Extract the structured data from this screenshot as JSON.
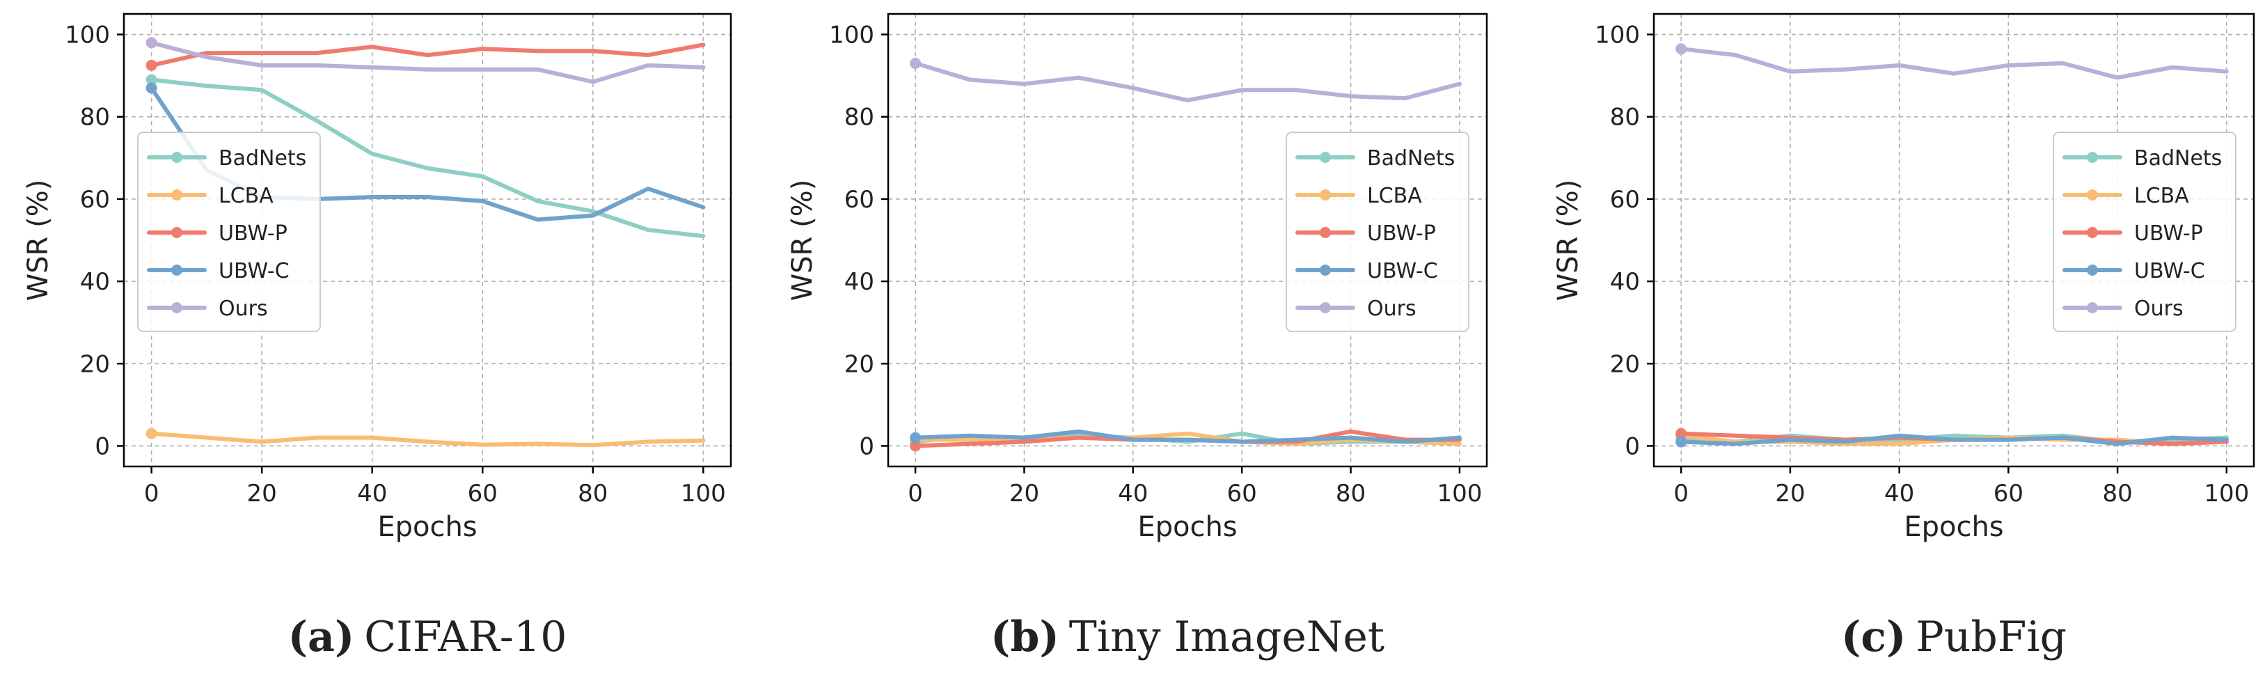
{
  "figure": {
    "panels": [
      {
        "label": "(a)",
        "name": "CIFAR-10"
      },
      {
        "label": "(b)",
        "name": "Tiny ImageNet"
      },
      {
        "label": "(c)",
        "name": "PubFig"
      }
    ]
  },
  "colors": {
    "BadNets": "#8ecfc4",
    "LCBA": "#f8bd72",
    "UBW-P": "#ef7b6e",
    "UBW-C": "#6fa3cd",
    "Ours": "#bbaed8",
    "grid": "#b0b0b0",
    "axis": "#000000"
  },
  "chart_data": [
    {
      "type": "line",
      "title": "",
      "xlabel": "Epochs",
      "ylabel": "WSR (%)",
      "xlim": [
        0,
        100
      ],
      "ylim": [
        0,
        100
      ],
      "xticks": [
        0,
        20,
        40,
        60,
        80,
        100
      ],
      "yticks": [
        0,
        20,
        40,
        60,
        80,
        100
      ],
      "grid": true,
      "legend_position": "center-left",
      "x": [
        0,
        10,
        20,
        30,
        40,
        50,
        60,
        70,
        80,
        90,
        100
      ],
      "series": [
        {
          "name": "BadNets",
          "values": [
            89,
            87.5,
            86.5,
            79,
            71,
            67.5,
            65.5,
            59.5,
            57,
            52.5,
            51
          ]
        },
        {
          "name": "LCBA",
          "values": [
            3,
            2,
            1,
            2,
            2,
            1,
            0.3,
            0.5,
            0.2,
            1,
            1.3
          ]
        },
        {
          "name": "UBW-P",
          "values": [
            92.5,
            95.5,
            95.5,
            95.5,
            97,
            95,
            96.5,
            96,
            96,
            95,
            97.5
          ]
        },
        {
          "name": "UBW-C",
          "values": [
            87,
            67,
            60.5,
            60,
            60.5,
            60.5,
            59.5,
            55,
            56,
            62.5,
            58
          ]
        },
        {
          "name": "Ours",
          "values": [
            98,
            94.5,
            92.5,
            92.5,
            92,
            91.5,
            91.5,
            91.5,
            88.5,
            92.5,
            92
          ]
        }
      ]
    },
    {
      "type": "line",
      "title": "",
      "xlabel": "Epochs",
      "ylabel": "WSR (%)",
      "xlim": [
        0,
        100
      ],
      "ylim": [
        0,
        100
      ],
      "xticks": [
        0,
        20,
        40,
        60,
        80,
        100
      ],
      "yticks": [
        0,
        20,
        40,
        60,
        80,
        100
      ],
      "grid": true,
      "legend_position": "center-right",
      "x": [
        0,
        10,
        20,
        30,
        40,
        50,
        60,
        70,
        80,
        90,
        100
      ],
      "series": [
        {
          "name": "BadNets",
          "values": [
            1,
            2.5,
            1.5,
            2.5,
            2,
            1,
            3,
            0.5,
            1,
            1,
            1.5
          ]
        },
        {
          "name": "LCBA",
          "values": [
            1.5,
            1.5,
            2,
            2,
            2,
            3,
            1,
            0.5,
            1.5,
            1,
            0.5
          ]
        },
        {
          "name": "UBW-P",
          "values": [
            0,
            0.5,
            1,
            2,
            1.5,
            1.5,
            1,
            1,
            3.5,
            1.5,
            1.5
          ]
        },
        {
          "name": "UBW-C",
          "values": [
            2,
            2.5,
            2,
            3.5,
            1.5,
            1.5,
            1,
            1.5,
            2,
            1,
            2
          ]
        },
        {
          "name": "Ours",
          "values": [
            93,
            89,
            88,
            89.5,
            87,
            84,
            86.5,
            86.5,
            85,
            84.5,
            88
          ]
        }
      ]
    },
    {
      "type": "line",
      "title": "",
      "xlabel": "Epochs",
      "ylabel": "WSR (%)",
      "xlim": [
        0,
        100
      ],
      "ylim": [
        0,
        100
      ],
      "xticks": [
        0,
        20,
        40,
        60,
        80,
        100
      ],
      "yticks": [
        0,
        20,
        40,
        60,
        80,
        100
      ],
      "grid": true,
      "legend_position": "center-right",
      "x": [
        0,
        10,
        20,
        30,
        40,
        50,
        60,
        70,
        80,
        90,
        100
      ],
      "series": [
        {
          "name": "BadNets",
          "values": [
            2,
            1,
            2.5,
            1.5,
            1.5,
            2.5,
            2,
            2.5,
            1,
            1.5,
            2
          ]
        },
        {
          "name": "LCBA",
          "values": [
            2.5,
            1,
            1,
            0.5,
            0.5,
            1.5,
            2,
            1.5,
            1.5,
            0.5,
            1
          ]
        },
        {
          "name": "UBW-P",
          "values": [
            3,
            2.5,
            2,
            1.5,
            2,
            1.5,
            1.5,
            2,
            1,
            0.5,
            1
          ]
        },
        {
          "name": "UBW-C",
          "values": [
            1,
            0.5,
            1.5,
            1,
            2.5,
            1.5,
            1.5,
            2,
            0.5,
            2,
            1.5
          ]
        },
        {
          "name": "Ours",
          "values": [
            96.5,
            95,
            91,
            91.5,
            92.5,
            90.5,
            92.5,
            93,
            89.5,
            92,
            91
          ]
        }
      ]
    }
  ]
}
